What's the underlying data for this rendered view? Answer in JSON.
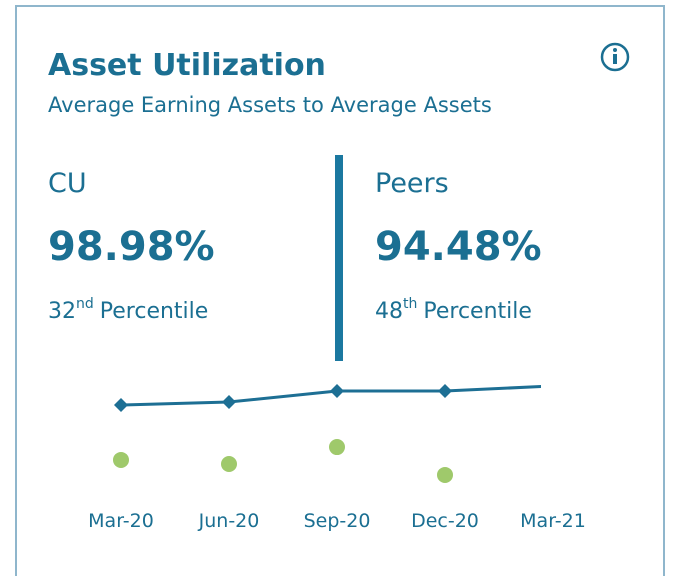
{
  "card": {
    "title": "Asset Utilization",
    "subtitle": "Average Earning Assets to Average Assets",
    "cu": {
      "value": "98.98%",
      "rank": "32",
      "suffix": "nd",
      "label": "Percentile"
    },
    "peers": {
      "value": "94.48%",
      "rank": "48",
      "suffix": "th",
      "label": "Percentile"
    }
  },
  "chart_data": {
    "type": "line",
    "categories": [
      "Mar-20",
      "Jun-20",
      "Sep-20",
      "Dec-20",
      "Mar-21"
    ],
    "series": [
      {
        "name": "CU",
        "color": "#1d6f94",
        "values": [
          97.71,
          97.91,
          98.65,
          98.65,
          98.98
        ],
        "markers": [
          true,
          true,
          true,
          true,
          false
        ]
      },
      {
        "name": "Peers",
        "color": "#9fc96b",
        "values": [
          94.05,
          93.78,
          94.91,
          93.05,
          null
        ]
      }
    ],
    "ylim": [
      92,
      100
    ]
  }
}
